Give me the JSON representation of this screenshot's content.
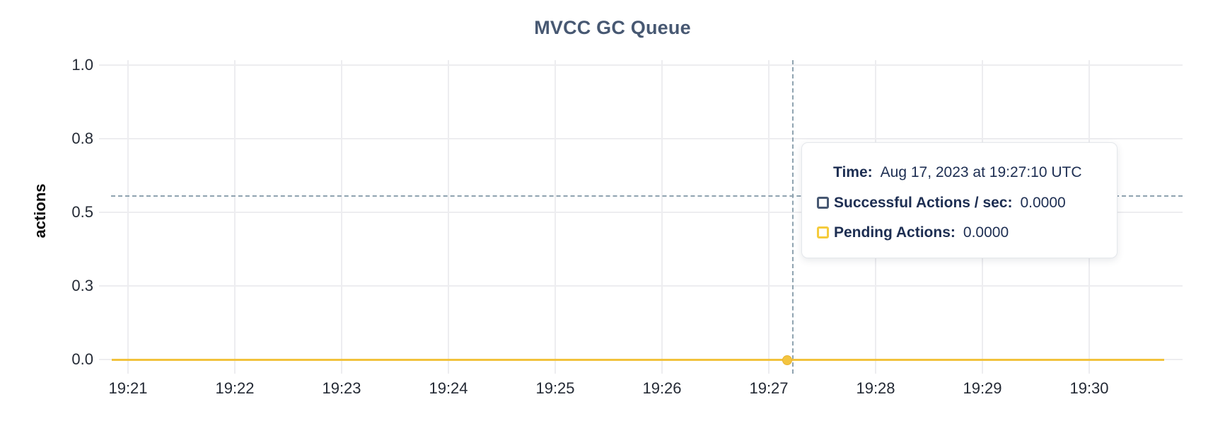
{
  "chart": {
    "title": "MVCC GC Queue",
    "y_axis_label": "actions",
    "y_ticks": [
      "1.0",
      "0.8",
      "0.5",
      "0.3",
      "0.0"
    ],
    "x_ticks": [
      "19:21",
      "19:22",
      "19:23",
      "19:24",
      "19:25",
      "19:26",
      "19:27",
      "19:28",
      "19:29",
      "19:30"
    ]
  },
  "tooltip": {
    "time_label": "Time:",
    "time_value": "Aug 17, 2023 at 19:27:10 UTC",
    "series": [
      {
        "label": "Successful Actions / sec:",
        "value": "0.0000",
        "color": "#475872"
      },
      {
        "label": "Pending Actions:",
        "value": "0.0000",
        "color": "#f5cb3c"
      }
    ]
  },
  "colors": {
    "title_text": "#475872",
    "tick_text": "#242a35",
    "tooltip_text": "#1d2e52",
    "gridline": "#ededf0",
    "crosshair": "#8fa3b0",
    "pending_series_line": "#f2c23c",
    "successful_series": "#475872"
  },
  "chart_data": {
    "type": "line",
    "title": "MVCC GC Queue",
    "xlabel": "",
    "ylabel": "actions",
    "ylim": [
      0,
      1
    ],
    "y_tick_values": [
      0.0,
      0.25,
      0.5,
      0.75,
      1.0
    ],
    "y_tick_labels": [
      "0.0",
      "0.3",
      "0.5",
      "0.8",
      "1.0"
    ],
    "x": [
      "19:21",
      "19:22",
      "19:23",
      "19:24",
      "19:25",
      "19:26",
      "19:27",
      "19:28",
      "19:29",
      "19:30"
    ],
    "series": [
      {
        "name": "Successful Actions / sec",
        "color": "#475872",
        "values": [
          0,
          0,
          0,
          0,
          0,
          0,
          0,
          0,
          0,
          0
        ]
      },
      {
        "name": "Pending Actions",
        "color": "#f2c23c",
        "values": [
          0,
          0,
          0,
          0,
          0,
          0,
          0,
          0,
          0,
          0
        ]
      }
    ],
    "grid": true,
    "legend_position": "tooltip-only",
    "hover_point": {
      "time": "Aug 17, 2023 at 19:27:10 UTC",
      "successful_actions_per_sec": 0.0,
      "pending_actions": 0.0,
      "crosshair_y_value": 0.56
    }
  }
}
